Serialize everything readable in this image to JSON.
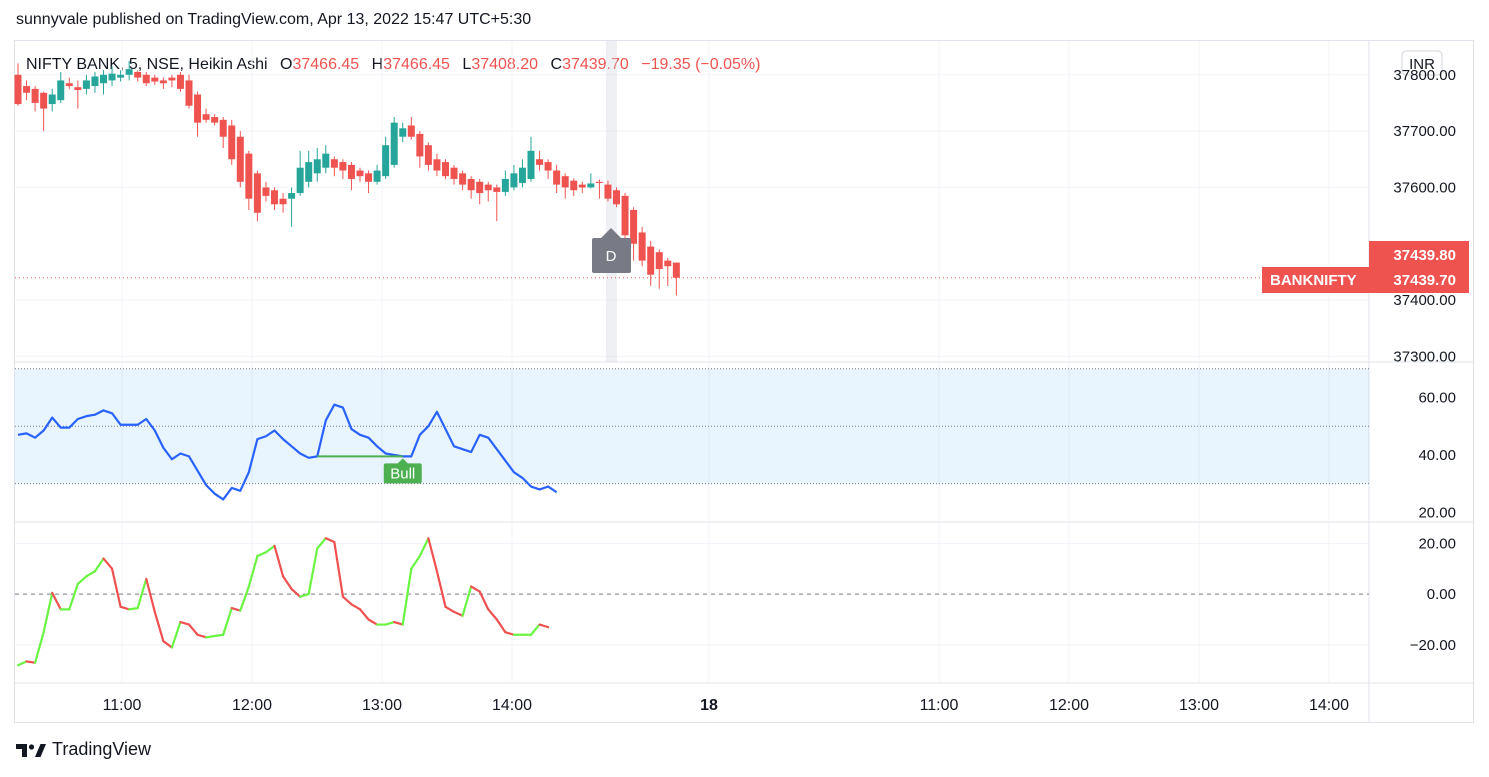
{
  "header": {
    "publisher_line": "sunnyvale published on TradingView.com, Apr 13, 2022 15:47 UTC+5:30"
  },
  "legend": {
    "symbol": "NIFTY BANK, 5, NSE, Heikin Ashi",
    "o_label": "O",
    "o_value": "37466.45",
    "h_label": "H",
    "h_value": "37466.45",
    "l_label": "L",
    "l_value": "37408.20",
    "c_label": "C",
    "c_value": "37439.70",
    "change": "−19.35 (−0.05%)"
  },
  "currency_label": "INR",
  "colors": {
    "up": "#26a69a",
    "down": "#ef5350",
    "osc_line": "#2962ff",
    "bull": "#4caf50",
    "hist_up": "#69f542",
    "hist_down": "#f05050",
    "badge": "#787b86"
  },
  "price_tags": [
    {
      "label": "",
      "value": "37439.80"
    },
    {
      "label": "BANKNIFTY",
      "value": "37439.70"
    }
  ],
  "marker": {
    "label": "D"
  },
  "divergence": {
    "label": "Bull"
  },
  "footer": {
    "brand": "TradingView"
  },
  "chart_data": [
    {
      "type": "candlestick",
      "title": "NIFTY BANK, 5, NSE, Heikin Ashi",
      "y_ticks": [
        "37800.00",
        "37700.00",
        "37600.00",
        "37400.00",
        "37300.00"
      ],
      "y_tick_values": [
        37800,
        37700,
        37600,
        37400,
        37300
      ],
      "ylim": [
        37290,
        37860
      ],
      "x_ticks": [
        "11:00",
        "12:00",
        "13:00",
        "14:00",
        "18",
        "11:00",
        "12:00",
        "13:00",
        "14:00"
      ],
      "candles": [
        {
          "o": 37800,
          "h": 37820,
          "l": 37745,
          "c": 37748
        },
        {
          "o": 37780,
          "h": 37790,
          "l": 37755,
          "c": 37768
        },
        {
          "o": 37775,
          "h": 37780,
          "l": 37735,
          "c": 37750
        },
        {
          "o": 37768,
          "h": 37770,
          "l": 37700,
          "c": 37740
        },
        {
          "o": 37748,
          "h": 37775,
          "l": 37735,
          "c": 37765
        },
        {
          "o": 37755,
          "h": 37805,
          "l": 37750,
          "c": 37790
        },
        {
          "o": 37785,
          "h": 37795,
          "l": 37775,
          "c": 37780
        },
        {
          "o": 37778,
          "h": 37790,
          "l": 37740,
          "c": 37773
        },
        {
          "o": 37775,
          "h": 37800,
          "l": 37765,
          "c": 37790
        },
        {
          "o": 37780,
          "h": 37805,
          "l": 37768,
          "c": 37797
        },
        {
          "o": 37785,
          "h": 37808,
          "l": 37765,
          "c": 37800
        },
        {
          "o": 37790,
          "h": 37815,
          "l": 37780,
          "c": 37802
        },
        {
          "o": 37795,
          "h": 37808,
          "l": 37788,
          "c": 37800
        },
        {
          "o": 37800,
          "h": 37825,
          "l": 37790,
          "c": 37810
        },
        {
          "o": 37805,
          "h": 37808,
          "l": 37788,
          "c": 37795
        },
        {
          "o": 37800,
          "h": 37805,
          "l": 37780,
          "c": 37785
        },
        {
          "o": 37795,
          "h": 37800,
          "l": 37782,
          "c": 37788
        },
        {
          "o": 37790,
          "h": 37795,
          "l": 37775,
          "c": 37785
        },
        {
          "o": 37795,
          "h": 37800,
          "l": 37778,
          "c": 37790
        },
        {
          "o": 37800,
          "h": 37805,
          "l": 37770,
          "c": 37775
        },
        {
          "o": 37790,
          "h": 37800,
          "l": 37740,
          "c": 37745
        },
        {
          "o": 37765,
          "h": 37770,
          "l": 37690,
          "c": 37715
        },
        {
          "o": 37730,
          "h": 37740,
          "l": 37715,
          "c": 37720
        },
        {
          "o": 37725,
          "h": 37730,
          "l": 37710,
          "c": 37715
        },
        {
          "o": 37720,
          "h": 37725,
          "l": 37670,
          "c": 37690
        },
        {
          "o": 37710,
          "h": 37720,
          "l": 37640,
          "c": 37650
        },
        {
          "o": 37690,
          "h": 37700,
          "l": 37600,
          "c": 37610
        },
        {
          "o": 37660,
          "h": 37665,
          "l": 37560,
          "c": 37580
        },
        {
          "o": 37625,
          "h": 37630,
          "l": 37540,
          "c": 37555
        },
        {
          "o": 37600,
          "h": 37610,
          "l": 37575,
          "c": 37585
        },
        {
          "o": 37595,
          "h": 37600,
          "l": 37560,
          "c": 37570
        },
        {
          "o": 37580,
          "h": 37590,
          "l": 37555,
          "c": 37570
        },
        {
          "o": 37580,
          "h": 37600,
          "l": 37530,
          "c": 37590
        },
        {
          "o": 37590,
          "h": 37665,
          "l": 37585,
          "c": 37635
        },
        {
          "o": 37610,
          "h": 37665,
          "l": 37600,
          "c": 37645
        },
        {
          "o": 37625,
          "h": 37670,
          "l": 37610,
          "c": 37650
        },
        {
          "o": 37635,
          "h": 37675,
          "l": 37625,
          "c": 37660
        },
        {
          "o": 37650,
          "h": 37655,
          "l": 37620,
          "c": 37635
        },
        {
          "o": 37645,
          "h": 37650,
          "l": 37615,
          "c": 37630
        },
        {
          "o": 37640,
          "h": 37645,
          "l": 37595,
          "c": 37615
        },
        {
          "o": 37630,
          "h": 37635,
          "l": 37610,
          "c": 37620
        },
        {
          "o": 37625,
          "h": 37630,
          "l": 37590,
          "c": 37610
        },
        {
          "o": 37610,
          "h": 37640,
          "l": 37605,
          "c": 37630
        },
        {
          "o": 37620,
          "h": 37690,
          "l": 37615,
          "c": 37675
        },
        {
          "o": 37640,
          "h": 37725,
          "l": 37635,
          "c": 37715
        },
        {
          "o": 37690,
          "h": 37715,
          "l": 37680,
          "c": 37705
        },
        {
          "o": 37710,
          "h": 37725,
          "l": 37685,
          "c": 37690
        },
        {
          "o": 37695,
          "h": 37700,
          "l": 37635,
          "c": 37655
        },
        {
          "o": 37675,
          "h": 37680,
          "l": 37630,
          "c": 37640
        },
        {
          "o": 37650,
          "h": 37660,
          "l": 37620,
          "c": 37630
        },
        {
          "o": 37645,
          "h": 37650,
          "l": 37615,
          "c": 37620
        },
        {
          "o": 37635,
          "h": 37640,
          "l": 37605,
          "c": 37615
        },
        {
          "o": 37625,
          "h": 37630,
          "l": 37595,
          "c": 37605
        },
        {
          "o": 37615,
          "h": 37620,
          "l": 37580,
          "c": 37595
        },
        {
          "o": 37610,
          "h": 37615,
          "l": 37570,
          "c": 37590
        },
        {
          "o": 37605,
          "h": 37610,
          "l": 37575,
          "c": 37595
        },
        {
          "o": 37600,
          "h": 37605,
          "l": 37540,
          "c": 37592
        },
        {
          "o": 37592,
          "h": 37630,
          "l": 37585,
          "c": 37615
        },
        {
          "o": 37600,
          "h": 37640,
          "l": 37595,
          "c": 37625
        },
        {
          "o": 37608,
          "h": 37650,
          "l": 37600,
          "c": 37635
        },
        {
          "o": 37615,
          "h": 37690,
          "l": 37610,
          "c": 37665
        },
        {
          "o": 37650,
          "h": 37665,
          "l": 37630,
          "c": 37640
        },
        {
          "o": 37645,
          "h": 37650,
          "l": 37615,
          "c": 37630
        },
        {
          "o": 37630,
          "h": 37640,
          "l": 37590,
          "c": 37605
        },
        {
          "o": 37620,
          "h": 37625,
          "l": 37580,
          "c": 37600
        },
        {
          "o": 37612,
          "h": 37616,
          "l": 37585,
          "c": 37595
        },
        {
          "o": 37605,
          "h": 37610,
          "l": 37590,
          "c": 37600
        },
        {
          "o": 37600,
          "h": 37625,
          "l": 37598,
          "c": 37607
        },
        {
          "o": 37610,
          "h": 37614,
          "l": 37580,
          "c": 37608
        },
        {
          "o": 37605,
          "h": 37612,
          "l": 37575,
          "c": 37580
        },
        {
          "o": 37595,
          "h": 37600,
          "l": 37565,
          "c": 37570
        },
        {
          "o": 37585,
          "h": 37590,
          "l": 37495,
          "c": 37515
        },
        {
          "o": 37560,
          "h": 37565,
          "l": 37470,
          "c": 37500
        },
        {
          "o": 37520,
          "h": 37530,
          "l": 37460,
          "c": 37470
        },
        {
          "o": 37495,
          "h": 37505,
          "l": 37425,
          "c": 37445
        },
        {
          "o": 37485,
          "h": 37490,
          "l": 37420,
          "c": 37455
        },
        {
          "o": 37470,
          "h": 37475,
          "l": 37425,
          "c": 37460
        },
        {
          "o": 37466.45,
          "h": 37466.45,
          "l": 37408.2,
          "c": 37439.7
        }
      ]
    },
    {
      "type": "line",
      "y_ticks": [
        "60.00",
        "40.00",
        "20.00"
      ],
      "y_tick_values": [
        60,
        40,
        20
      ],
      "ylim": [
        17,
        72
      ],
      "band": [
        30,
        70
      ],
      "dotted_levels": [
        70,
        50,
        30
      ],
      "values": [
        47,
        47.5,
        46,
        48.5,
        53,
        49.5,
        49.5,
        52.5,
        53.5,
        54,
        55.5,
        54.5,
        50.5,
        50.5,
        50.5,
        52.5,
        48.5,
        42.5,
        38.5,
        40.5,
        39.5,
        34.5,
        29.5,
        26.5,
        24.5,
        28.5,
        27.5,
        34,
        45.5,
        46.5,
        48.5,
        45.5,
        43,
        40.5,
        39,
        39.5,
        52,
        57.5,
        56.5,
        49,
        47,
        46,
        43,
        40.5,
        40,
        39.5,
        39.5,
        47,
        50,
        55,
        49,
        43,
        42,
        41,
        47,
        46,
        42,
        38,
        34,
        32,
        29,
        28,
        29,
        27
      ],
      "divergence": {
        "from_index": 35,
        "to_index": 45,
        "value": 39.5
      }
    },
    {
      "type": "line",
      "y_ticks": [
        "20.00",
        "0.00",
        "−20.00"
      ],
      "y_tick_values": [
        20,
        0,
        -20
      ],
      "ylim": [
        -35,
        28
      ],
      "zero_line": 0,
      "values": [
        -28,
        -26.5,
        -27,
        -15,
        0.5,
        -6,
        -6,
        4,
        7,
        9,
        14,
        10,
        -5,
        -6,
        -5.5,
        6,
        -7,
        -18.5,
        -21,
        -11,
        -12,
        -16,
        -17,
        -16.5,
        -16,
        -5.5,
        -6.5,
        3,
        15,
        16.5,
        19,
        7,
        2,
        -1,
        0,
        18,
        22,
        20.5,
        -1,
        -4,
        -6,
        -10,
        -12,
        -12,
        -11,
        -12,
        10,
        15,
        22,
        9,
        -5,
        -7,
        -8.5,
        3,
        1,
        -6,
        -10,
        -15,
        -16,
        -16,
        -16,
        -12,
        -13
      ]
    }
  ]
}
